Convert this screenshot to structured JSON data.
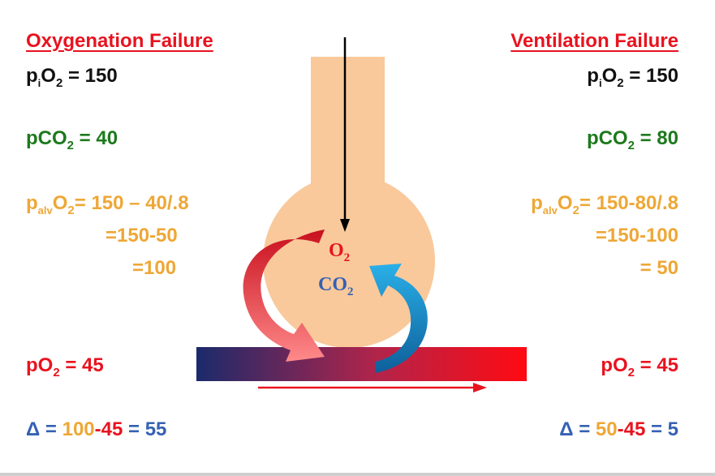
{
  "left": {
    "title": "Oxygenation Failure",
    "pio2_label": "p",
    "pio2_sub1": "i",
    "pio2_mid": "O",
    "pio2_sub2": "2",
    "pio2_value": " = 150",
    "pco2_label": "pCO",
    "pco2_sub": "2",
    "pco2_value": " = 40",
    "palv_label": "p",
    "palv_sub1": "alv",
    "palv_mid": "O",
    "palv_sub2": "2",
    "palv_expr": "= 150 – 40/.8",
    "palv_line2": "=150-50",
    "palv_line3": "=100",
    "po2_label": "pO",
    "po2_sub": "2",
    "po2_value": " = 45",
    "delta_symbol": "Δ",
    "delta_eq": " = ",
    "delta_a": "100",
    "delta_b": "-45",
    "delta_result": " = 55"
  },
  "right": {
    "title": "Ventilation Failure",
    "pio2_label": "p",
    "pio2_sub1": "i",
    "pio2_mid": "O",
    "pio2_sub2": "2",
    "pio2_value": " = 150",
    "pco2_label": "pCO",
    "pco2_sub": "2",
    "pco2_value": " = 80",
    "palv_label": "p",
    "palv_sub1": "alv",
    "palv_mid": "O",
    "palv_sub2": "2",
    "palv_expr": "= 150-80/.8",
    "palv_line2": "=150-100",
    "palv_line3": "= 50",
    "po2_label": "pO",
    "po2_sub": "2",
    "po2_value": " = 45",
    "delta_symbol": "Δ",
    "delta_eq": " = ",
    "delta_a": "50",
    "delta_b": "-45",
    "delta_result": " = 5"
  },
  "center": {
    "o2_label": "O",
    "o2_sub": "2",
    "co2_label": "CO",
    "co2_sub": "2"
  },
  "colors": {
    "alveolus": "#f9c99b",
    "title_red": "#e8131f",
    "green": "#1c7a1c",
    "orange": "#eea736",
    "blue": "#3561b3",
    "capillary_start": "#1b2a6b",
    "capillary_end": "#ff0a12",
    "o2_arrow": "#e8131f",
    "co2_arrow": "#1697d1"
  }
}
